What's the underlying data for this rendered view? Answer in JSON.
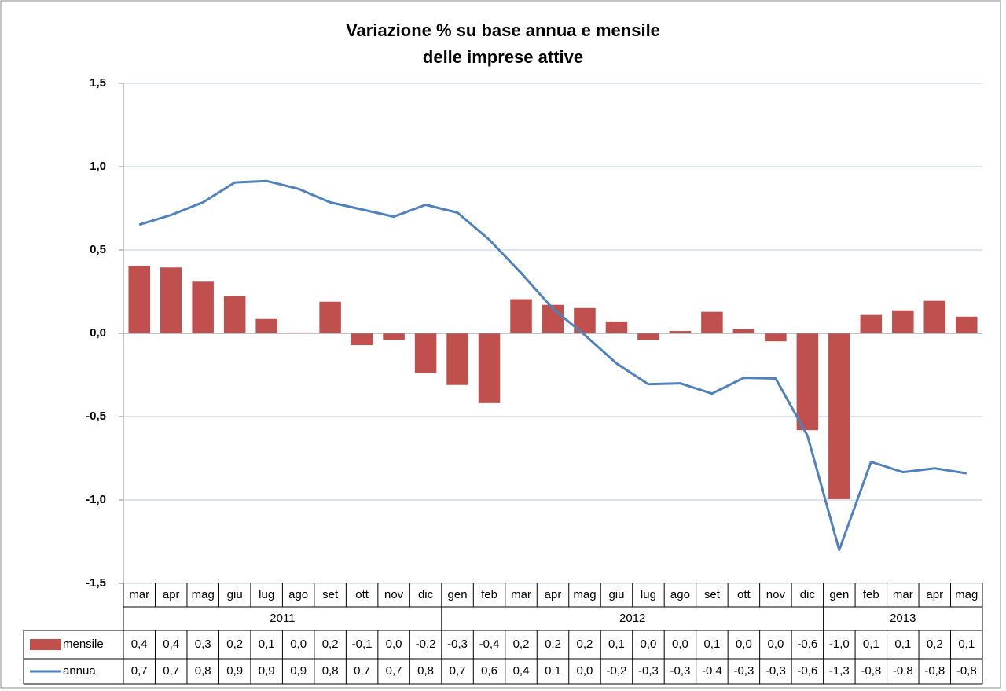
{
  "chart_data": {
    "type": "bar",
    "title_lines": [
      "Variazione % su base annua e mensile",
      "delle imprese attive"
    ],
    "categories": [
      "mar",
      "apr",
      "mag",
      "giu",
      "lug",
      "ago",
      "set",
      "ott",
      "nov",
      "dic",
      "gen",
      "feb",
      "mar",
      "apr",
      "mag",
      "giu",
      "lug",
      "ago",
      "set",
      "ott",
      "nov",
      "dic",
      "gen",
      "feb",
      "mar",
      "apr",
      "mag"
    ],
    "years": [
      "2011",
      "2012",
      "2013"
    ],
    "series": [
      {
        "name": "mensile",
        "type": "bar",
        "color": "#c0504d",
        "values": [
          0.405,
          0.395,
          0.31,
          0.224,
          0.086,
          0.005,
          0.19,
          -0.071,
          -0.038,
          -0.238,
          -0.31,
          -0.419,
          0.205,
          0.171,
          0.152,
          0.071,
          -0.038,
          0.014,
          0.129,
          0.024,
          -0.048,
          -0.581,
          -0.995,
          0.11,
          0.138,
          0.195,
          0.1
        ],
        "value_labels": [
          "0,4",
          "0,4",
          "0,3",
          "0,2",
          "0,1",
          "0,0",
          "0,2",
          "-0,1",
          "0,0",
          "-0,2",
          "-0,3",
          "-0,4",
          "0,2",
          "0,2",
          "0,2",
          "0,1",
          "0,0",
          "0,0",
          "0,1",
          "0,0",
          "0,0",
          "-0,6",
          "-1,0",
          "0,1",
          "0,1",
          "0,2",
          "0,1"
        ]
      },
      {
        "name": "annua",
        "type": "line",
        "color": "#4f81bd",
        "values": [
          0.652,
          0.71,
          0.786,
          0.905,
          0.914,
          0.867,
          0.786,
          0.743,
          0.7,
          0.771,
          0.724,
          0.562,
          0.362,
          0.148,
          -0.01,
          -0.181,
          -0.305,
          -0.3,
          -0.362,
          -0.267,
          -0.271,
          -0.614,
          -1.3,
          -0.771,
          -0.833,
          -0.81,
          -0.84
        ],
        "value_labels": [
          "0,7",
          "0,7",
          "0,8",
          "0,9",
          "0,9",
          "0,9",
          "0,8",
          "0,7",
          "0,7",
          "0,8",
          "0,7",
          "0,6",
          "0,4",
          "0,1",
          "0,0",
          "-0,2",
          "-0,3",
          "-0,3",
          "-0,4",
          "-0,3",
          "-0,3",
          "-0,6",
          "-1,3",
          "-0,8",
          "-0,8",
          "-0,8",
          "-0,8"
        ]
      }
    ],
    "ylim": [
      -1.5,
      1.5
    ],
    "yticks": [
      {
        "value": -1.5,
        "label": "-1,5"
      },
      {
        "value": -1,
        "label": "-1,0"
      },
      {
        "value": -0.5,
        "label": "-0,5"
      },
      {
        "value": 0,
        "label": "0,0"
      },
      {
        "value": 0.5,
        "label": "0,5"
      },
      {
        "value": 1,
        "label": "1,0"
      },
      {
        "value": 1.5,
        "label": "1,5"
      }
    ],
    "grid": true
  }
}
